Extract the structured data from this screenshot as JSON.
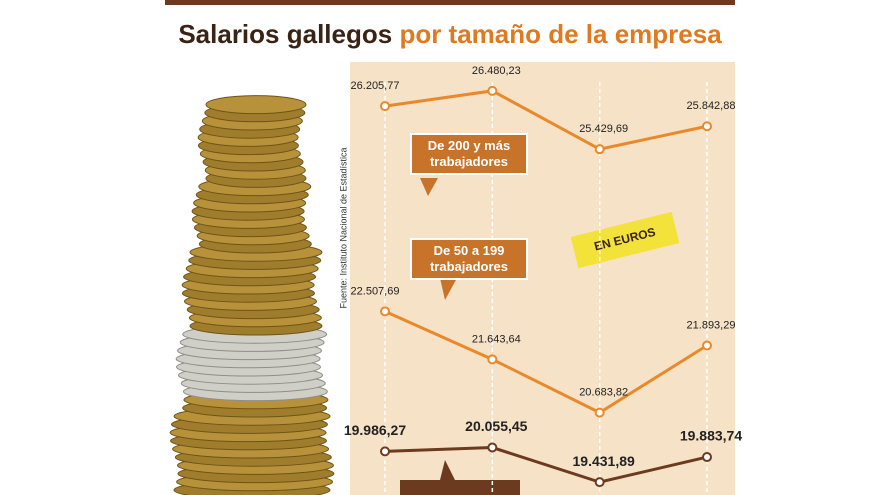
{
  "chart_data": {
    "type": "line",
    "title": "Salarios gallegos",
    "title_highlight": "por tamaño de la empresa",
    "source": "Fuente: Instituto Nacional de Estadística",
    "unit_label": "EN EUROS",
    "categories": [
      null,
      null,
      null,
      null
    ],
    "ylim": [
      19200,
      27000
    ],
    "grid": true,
    "series": [
      {
        "name": "De 200 y más trabajadores",
        "color": "#e8892b",
        "values": [
          26205.77,
          26480.23,
          25429.69,
          25842.88
        ],
        "value_labels": [
          "26.205,77",
          "26.480,23",
          "25.429,69",
          "25.842,88"
        ]
      },
      {
        "name": "De 50 a 199 trabajadores",
        "color": "#e8892b",
        "values": [
          22507.69,
          21643.64,
          20683.82,
          21893.29
        ],
        "value_labels": [
          "22.507,69",
          "21.643,64",
          "20.683,82",
          "21.893,29"
        ]
      },
      {
        "color": "#6b3a1f",
        "values": [
          19986.27,
          20055.45,
          19431.89,
          19883.74
        ],
        "value_labels": [
          "19.986,27",
          "20.055,45",
          "19.431,89",
          "19.883,74"
        ]
      }
    ]
  }
}
